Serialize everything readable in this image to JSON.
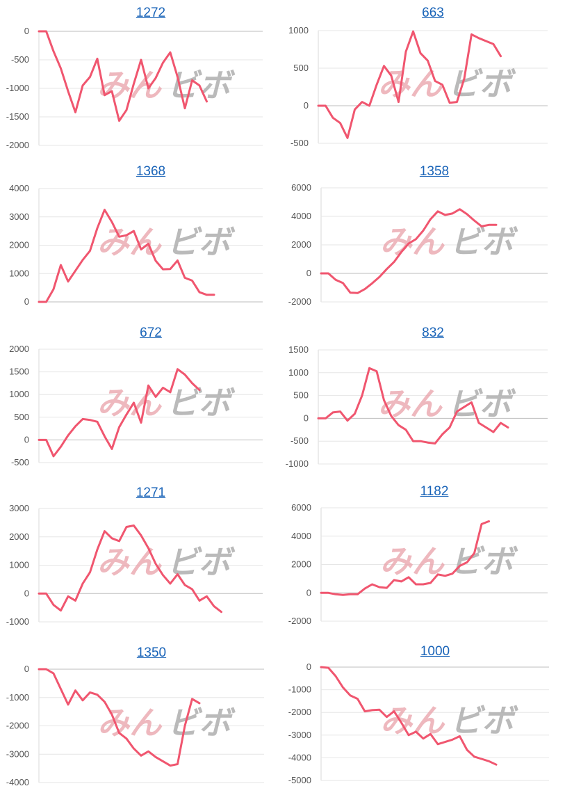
{
  "watermark": {
    "part1": "みん",
    "part2": "ビボ"
  },
  "chart_data": [
    {
      "type": "line",
      "title": "1272",
      "yticks": [
        0,
        -500,
        -1000,
        -1500,
        -2000
      ],
      "ylim": [
        -2000,
        0
      ],
      "values": [
        0,
        0,
        -350,
        -650,
        -1050,
        -1420,
        -950,
        -800,
        -480,
        -1120,
        -1050,
        -1570,
        -1380,
        -920,
        -500,
        -1000,
        -820,
        -550,
        -370,
        -800,
        -1350,
        -860,
        -950,
        -1230
      ]
    },
    {
      "type": "line",
      "title": "663",
      "yticks": [
        1000,
        500,
        0,
        -500
      ],
      "ylim": [
        -500,
        1000
      ],
      "values": [
        0,
        0,
        -160,
        -230,
        -430,
        -50,
        50,
        0,
        280,
        530,
        400,
        50,
        720,
        990,
        700,
        600,
        330,
        280,
        40,
        50,
        360,
        950,
        900,
        860,
        820,
        660
      ]
    },
    {
      "type": "line",
      "title": "1368",
      "yticks": [
        4000,
        3000,
        2000,
        1000,
        0
      ],
      "ylim": [
        0,
        4000
      ],
      "values": [
        0,
        0,
        450,
        1300,
        720,
        1100,
        1480,
        1800,
        2600,
        3250,
        2820,
        2300,
        2350,
        2500,
        1850,
        2050,
        1450,
        1150,
        1160,
        1460,
        850,
        750,
        340,
        250,
        250
      ]
    },
    {
      "type": "line",
      "title": "1358",
      "yticks": [
        6000,
        4000,
        2000,
        0,
        -2000
      ],
      "ylim": [
        -2000,
        6000
      ],
      "values": [
        0,
        0,
        -450,
        -680,
        -1350,
        -1380,
        -1100,
        -700,
        -250,
        300,
        800,
        1500,
        2100,
        2400,
        3000,
        3800,
        4350,
        4100,
        4200,
        4500,
        4150,
        3700,
        3300,
        3400,
        3400
      ]
    },
    {
      "type": "line",
      "title": "672",
      "yticks": [
        2000,
        1500,
        1000,
        500,
        0,
        -500
      ],
      "ylim": [
        -500,
        2000
      ],
      "values": [
        0,
        0,
        -360,
        -150,
        100,
        300,
        460,
        440,
        400,
        80,
        -200,
        280,
        560,
        820,
        380,
        1200,
        950,
        1150,
        1050,
        1560,
        1440,
        1250,
        1100
      ]
    },
    {
      "type": "line",
      "title": "832",
      "yticks": [
        1500,
        1000,
        500,
        0,
        -500,
        -1000
      ],
      "ylim": [
        -1000,
        1500
      ],
      "values": [
        0,
        0,
        130,
        150,
        -50,
        100,
        500,
        1100,
        1030,
        400,
        50,
        -150,
        -250,
        -500,
        -500,
        -530,
        -550,
        -350,
        -200,
        150,
        250,
        350,
        -100,
        -200,
        -300,
        -100,
        -200
      ]
    },
    {
      "type": "line",
      "title": "1271",
      "yticks": [
        3000,
        2000,
        1000,
        0,
        -1000
      ],
      "ylim": [
        -1000,
        3000
      ],
      "values": [
        0,
        0,
        -400,
        -600,
        -100,
        -250,
        350,
        750,
        1550,
        2200,
        1950,
        1850,
        2350,
        2400,
        2050,
        1600,
        1050,
        650,
        350,
        680,
        300,
        150,
        -250,
        -100,
        -450,
        -650
      ]
    },
    {
      "type": "line",
      "title": "1182",
      "yticks": [
        6000,
        4000,
        2000,
        0,
        -2000
      ],
      "ylim": [
        -2000,
        6000
      ],
      "values": [
        0,
        0,
        -100,
        -150,
        -100,
        -100,
        300,
        600,
        400,
        350,
        900,
        800,
        1100,
        600,
        600,
        700,
        1300,
        1200,
        1350,
        1900,
        2150,
        2800,
        4850,
        5050
      ]
    },
    {
      "type": "line",
      "title": "1350",
      "yticks": [
        0,
        -1000,
        -2000,
        -3000,
        -4000
      ],
      "ylim": [
        -4000,
        0
      ],
      "values": [
        0,
        0,
        -150,
        -700,
        -1250,
        -750,
        -1100,
        -820,
        -900,
        -1150,
        -1600,
        -2250,
        -2450,
        -2800,
        -3050,
        -2900,
        -3100,
        -3250,
        -3400,
        -3350,
        -2000,
        -1050,
        -1200
      ]
    },
    {
      "type": "line",
      "title": "1000",
      "yticks": [
        0,
        -1000,
        -2000,
        -3000,
        -4000,
        -5000
      ],
      "ylim": [
        -5000,
        0
      ],
      "values": [
        0,
        -30,
        -400,
        -900,
        -1250,
        -1400,
        -1950,
        -1900,
        -1880,
        -2200,
        -1950,
        -2450,
        -3000,
        -2850,
        -3150,
        -2950,
        -3400,
        -3300,
        -3200,
        -3050,
        -3650,
        -3950,
        -4050,
        -4150,
        -4300
      ]
    }
  ]
}
